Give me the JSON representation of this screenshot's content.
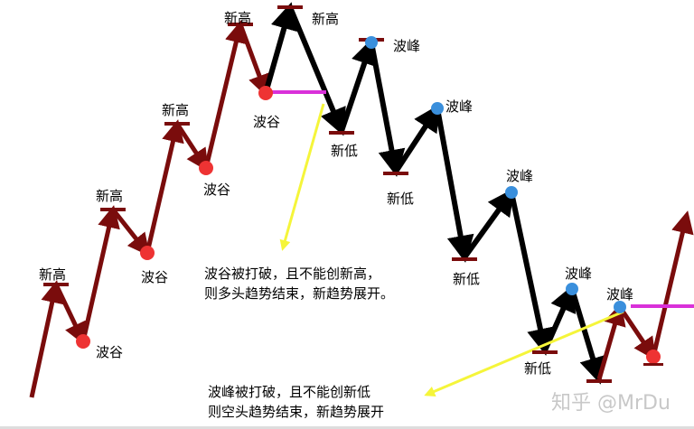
{
  "labels": {
    "new_high": "新高",
    "trough": "波谷",
    "peak": "波峰",
    "new_low": "新低"
  },
  "notes": {
    "uptrend_end_line1": "波谷被打破，且不能创新高，",
    "uptrend_end_line2": "则多头趋势结束，新趋势展开。",
    "downtrend_end_line1": "波峰被打破，且不能创新低",
    "downtrend_end_line2": "则空头趋势结束，新趋势展开"
  },
  "watermark": "知乎 @MrDu",
  "colors": {
    "uptrend_arrow": "#7a0c0c",
    "downtrend_arrow": "#000000",
    "trough_dot": "#ee3333",
    "peak_dot": "#3a8fdc",
    "break_line": "#d930d9",
    "pointer_arrow": "#f5f53a"
  }
}
